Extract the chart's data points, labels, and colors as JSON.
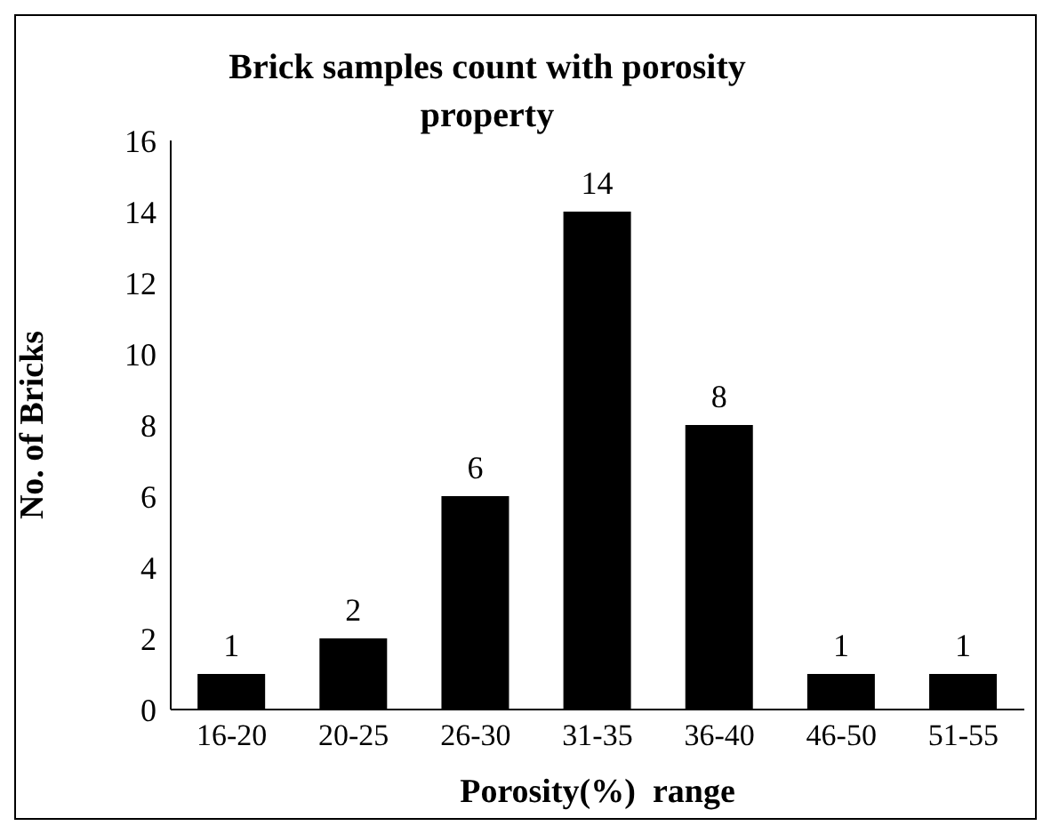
{
  "chart_data": {
    "type": "bar",
    "title": "Brick samples count with porosity property",
    "xlabel": "Porosity(%)  range",
    "ylabel": "No. of Bricks",
    "categories": [
      "16-20",
      "20-25",
      "26-30",
      "31-35",
      "36-40",
      "46-50",
      "51-55"
    ],
    "values": [
      1,
      2,
      6,
      14,
      8,
      1,
      1
    ],
    "color": "#000000",
    "ylim": [
      0,
      16
    ],
    "yticks": [
      0,
      2,
      4,
      6,
      8,
      10,
      12,
      14,
      16
    ],
    "data_labels": true
  }
}
